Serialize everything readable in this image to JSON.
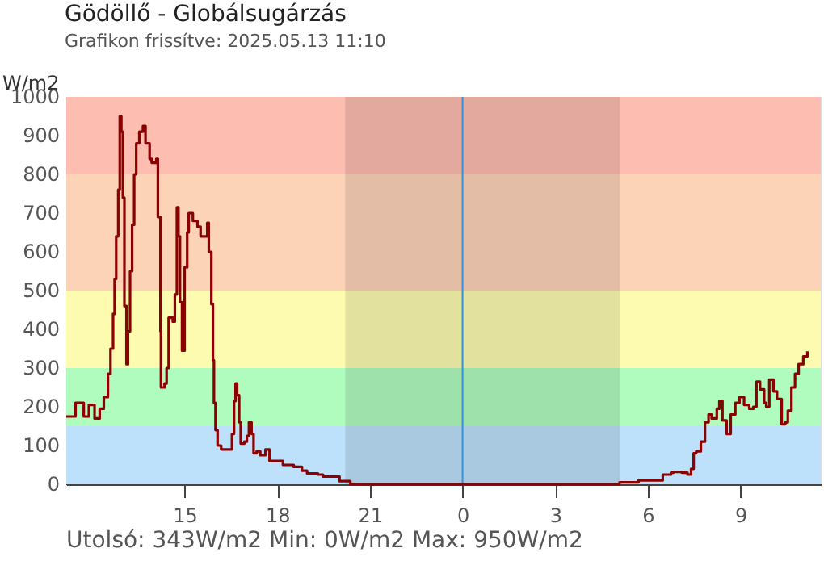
{
  "chart_data": {
    "type": "step",
    "title": "Gödöllő - Globálsugárzás",
    "subtitle": "Grafikon frissítve: 2025.05.13 11:10",
    "ylabel": "W/m2",
    "annotations": [
      "Utolsó: 343W/m2  Min: 0W/m2  Max: 950W/m2"
    ],
    "x": [
      "2025-05-12T11:10",
      "2025-05-12T11:28",
      "2025-05-12T11:44",
      "2025-05-12T11:54",
      "2025-05-12T12:05",
      "2025-05-12T12:15",
      "2025-05-12T12:23",
      "2025-05-12T12:31",
      "2025-05-12T12:36",
      "2025-05-12T12:41",
      "2025-05-12T12:44",
      "2025-05-12T12:47",
      "2025-05-12T12:51",
      "2025-05-12T12:54",
      "2025-05-12T12:57",
      "2025-05-12T13:00",
      "2025-05-12T13:03",
      "2025-05-12T13:07",
      "2025-05-12T13:10",
      "2025-05-12T13:14",
      "2025-05-12T13:18",
      "2025-05-12T13:22",
      "2025-05-12T13:26",
      "2025-05-12T13:32",
      "2025-05-12T13:39",
      "2025-05-12T13:44",
      "2025-05-12T13:52",
      "2025-05-12T13:56",
      "2025-05-12T14:05",
      "2025-05-12T14:08",
      "2025-05-12T14:13",
      "2025-05-12T14:14",
      "2025-05-12T14:21",
      "2025-05-12T14:25",
      "2025-05-12T14:29",
      "2025-05-12T14:37",
      "2025-05-12T14:41",
      "2025-05-12T14:45",
      "2025-05-12T14:48",
      "2025-05-12T14:51",
      "2025-05-12T14:55",
      "2025-05-12T15:00",
      "2025-05-12T15:05",
      "2025-05-12T15:08",
      "2025-05-12T15:16",
      "2025-05-12T15:25",
      "2025-05-12T15:31",
      "2025-05-12T15:40",
      "2025-05-12T15:44",
      "2025-05-12T15:47",
      "2025-05-12T15:52",
      "2025-05-12T15:55",
      "2025-05-12T15:57",
      "2025-05-12T16:00",
      "2025-05-12T16:04",
      "2025-05-12T16:11",
      "2025-05-12T16:26",
      "2025-05-12T16:32",
      "2025-05-12T16:36",
      "2025-05-12T16:39",
      "2025-05-12T16:42",
      "2025-05-12T16:46",
      "2025-05-12T16:49",
      "2025-05-12T16:56",
      "2025-05-12T17:01",
      "2025-05-12T17:05",
      "2025-05-12T17:10",
      "2025-05-12T17:14",
      "2025-05-12T17:20",
      "2025-05-12T17:27",
      "2025-05-12T17:37",
      "2025-05-12T17:45",
      "2025-05-12T17:55",
      "2025-05-12T18:11",
      "2025-05-12T18:32",
      "2025-05-12T18:48",
      "2025-05-12T18:58",
      "2025-05-12T19:19",
      "2025-05-12T19:29",
      "2025-05-12T20:01",
      "2025-05-12T20:22",
      "2025-05-13T04:57",
      "2025-05-13T05:05",
      "2025-05-13T05:37",
      "2025-05-13T05:42",
      "2025-05-13T06:19",
      "2025-05-13T06:29",
      "2025-05-13T06:45",
      "2025-05-13T06:50",
      "2025-05-13T07:06",
      "2025-05-13T07:17",
      "2025-05-13T07:24",
      "2025-05-13T07:29",
      "2025-05-13T07:34",
      "2025-05-13T07:43",
      "2025-05-13T07:51",
      "2025-05-13T07:58",
      "2025-05-13T08:04",
      "2025-05-13T08:14",
      "2025-05-13T08:19",
      "2025-05-13T08:25",
      "2025-05-13T08:33",
      "2025-05-13T08:41",
      "2025-05-13T08:50",
      "2025-05-13T08:58",
      "2025-05-13T09:07",
      "2025-05-13T09:17",
      "2025-05-13T09:25",
      "2025-05-13T09:31",
      "2025-05-13T09:38",
      "2025-05-13T09:46",
      "2025-05-13T09:50",
      "2025-05-13T09:56",
      "2025-05-13T10:04",
      "2025-05-13T10:11",
      "2025-05-13T10:20",
      "2025-05-13T10:27",
      "2025-05-13T10:32",
      "2025-05-13T10:39",
      "2025-05-13T10:46",
      "2025-05-13T10:53",
      "2025-05-13T11:02",
      "2025-05-13T11:10"
    ],
    "series": [
      {
        "color": "#8b0000",
        "values": [
          175,
          210,
          175,
          205,
          170,
          195,
          225,
          285,
          350,
          440,
          530,
          640,
          760,
          950,
          910,
          740,
          460,
          310,
          395,
          550,
          670,
          800,
          880,
          910,
          925,
          880,
          840,
          830,
          840,
          690,
          395,
          250,
          260,
          300,
          430,
          420,
          490,
          715,
          640,
          470,
          345,
          560,
          650,
          700,
          680,
          665,
          640,
          640,
          675,
          600,
          465,
          320,
          210,
          140,
          100,
          90,
          90,
          130,
          215,
          260,
          230,
          160,
          105,
          110,
          125,
          160,
          130,
          80,
          85,
          75,
          90,
          60,
          60,
          50,
          45,
          35,
          28,
          25,
          20,
          8,
          0,
          0,
          5,
          5,
          10,
          10,
          25,
          30,
          32,
          30,
          25,
          40,
          80,
          85,
          110,
          160,
          180,
          170,
          195,
          215,
          165,
          130,
          180,
          210,
          225,
          205,
          195,
          200,
          265,
          245,
          210,
          200,
          270,
          240,
          220,
          155,
          160,
          190,
          250,
          285,
          310,
          330,
          343
        ]
      }
    ],
    "xlim": [
      "2025-05-12T11:10",
      "2025-05-13T11:36"
    ],
    "xticks": [
      {
        "value": "2025-05-12T15:00",
        "label": "15"
      },
      {
        "value": "2025-05-12T18:00",
        "label": "18"
      },
      {
        "value": "2025-05-12T21:00",
        "label": "21"
      },
      {
        "value": "2025-05-13T00:00",
        "label": "0"
      },
      {
        "value": "2025-05-13T03:00",
        "label": "3"
      },
      {
        "value": "2025-05-13T06:00",
        "label": "6"
      },
      {
        "value": "2025-05-13T09:00",
        "label": "9"
      }
    ],
    "ylim": [
      0,
      1000
    ],
    "yticks": [
      0,
      100,
      200,
      300,
      400,
      500,
      600,
      700,
      800,
      900,
      1000
    ],
    "bands": [
      {
        "axis": "y",
        "from": 0,
        "to": 150,
        "color": "#bde0fb"
      },
      {
        "axis": "y",
        "from": 150,
        "to": 300,
        "color": "#b0fbbe"
      },
      {
        "axis": "y",
        "from": 300,
        "to": 500,
        "color": "#fdfbb0"
      },
      {
        "axis": "y",
        "from": 500,
        "to": 800,
        "color": "#fdd3b8"
      },
      {
        "axis": "y",
        "from": 800,
        "to": 1000,
        "color": "#fdbdb0"
      },
      {
        "axis": "x",
        "from": "2025-05-12T20:12",
        "to": "2025-05-13T05:06"
      }
    ],
    "ref_lines": [
      {
        "axis": "x",
        "value": "2025-05-13T00:00",
        "color": "#3a8fd0"
      }
    ],
    "marker": "none",
    "line_style": "solid"
  }
}
